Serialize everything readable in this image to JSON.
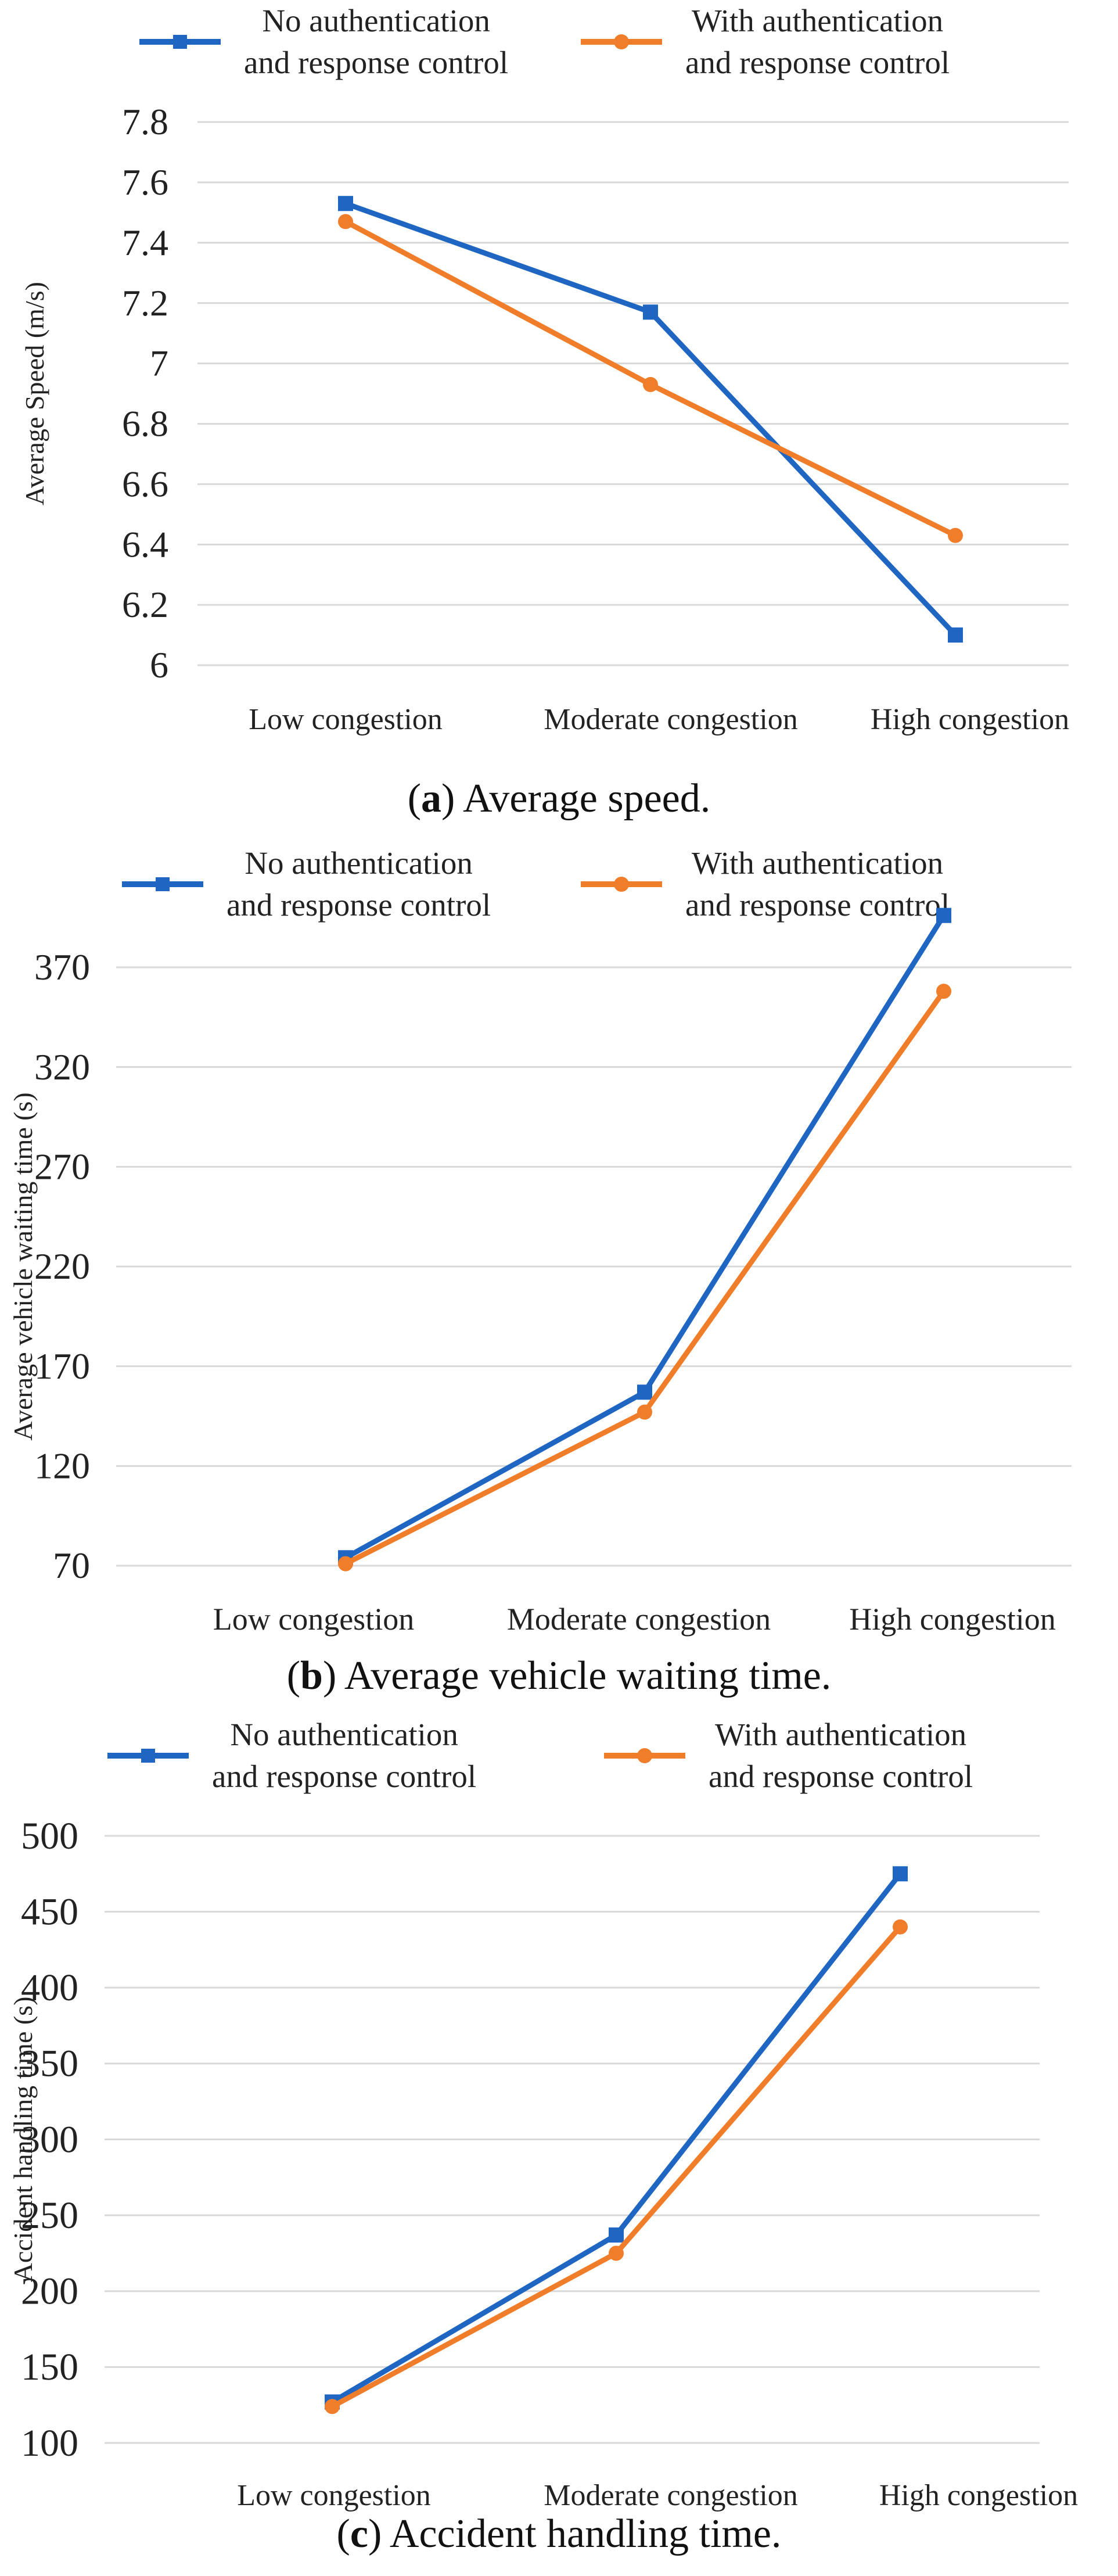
{
  "legend": {
    "series": [
      {
        "line1": "No authentication",
        "line2": "and response control",
        "color": "#1f66c2",
        "marker": "square"
      },
      {
        "line1": "With authentication",
        "line2": "and response control",
        "color": "#f07d2a",
        "marker": "circle"
      }
    ]
  },
  "panels": [
    {
      "caption_letter": "a",
      "caption_text": " Average speed."
    },
    {
      "caption_letter": "b",
      "caption_text": " Average vehicle waiting time."
    },
    {
      "caption_letter": "c",
      "caption_text": " Accident handling time."
    }
  ],
  "chart_data": [
    {
      "type": "line",
      "title": "",
      "xlabel": "",
      "ylabel": "Average Speed (m/s)",
      "categories": [
        "Low congestion",
        "Moderate congestion",
        "High congestion"
      ],
      "ylim": [
        6,
        7.8
      ],
      "yticks": [
        "6",
        "6.2",
        "6.4",
        "6.6",
        "6.8",
        "7",
        "7.2",
        "7.4",
        "7.6",
        "7.8"
      ],
      "grid": true,
      "legend_position": "top",
      "series": [
        {
          "name": "No authentication and response control",
          "values": [
            7.53,
            7.17,
            6.1
          ]
        },
        {
          "name": "With authentication and response control",
          "values": [
            7.47,
            6.93,
            6.43
          ]
        }
      ]
    },
    {
      "type": "line",
      "title": "",
      "xlabel": "",
      "ylabel": "Average vehicle waiting time (s)",
      "categories": [
        "Low congestion",
        "Moderate congestion",
        "High congestion"
      ],
      "ylim": [
        70,
        370
      ],
      "yticks": [
        "70",
        "120",
        "170",
        "220",
        "270",
        "320",
        "370"
      ],
      "grid": true,
      "legend_position": "top",
      "series": [
        {
          "name": "No authentication and response control",
          "values": [
            74,
            157,
            396
          ]
        },
        {
          "name": "With authentication and response control",
          "values": [
            71,
            147,
            358
          ]
        }
      ]
    },
    {
      "type": "line",
      "title": "",
      "xlabel": "",
      "ylabel": "Accident handling time (s)",
      "categories": [
        "Low congestion",
        "Moderate congestion",
        "High congestion"
      ],
      "ylim": [
        100,
        500
      ],
      "yticks": [
        "100",
        "150",
        "200",
        "250",
        "300",
        "350",
        "400",
        "450",
        "500"
      ],
      "grid": true,
      "legend_position": "top",
      "series": [
        {
          "name": "No authentication and response control",
          "values": [
            127,
            237,
            475
          ]
        },
        {
          "name": "With authentication and response control",
          "values": [
            124,
            225,
            440
          ]
        }
      ]
    }
  ]
}
